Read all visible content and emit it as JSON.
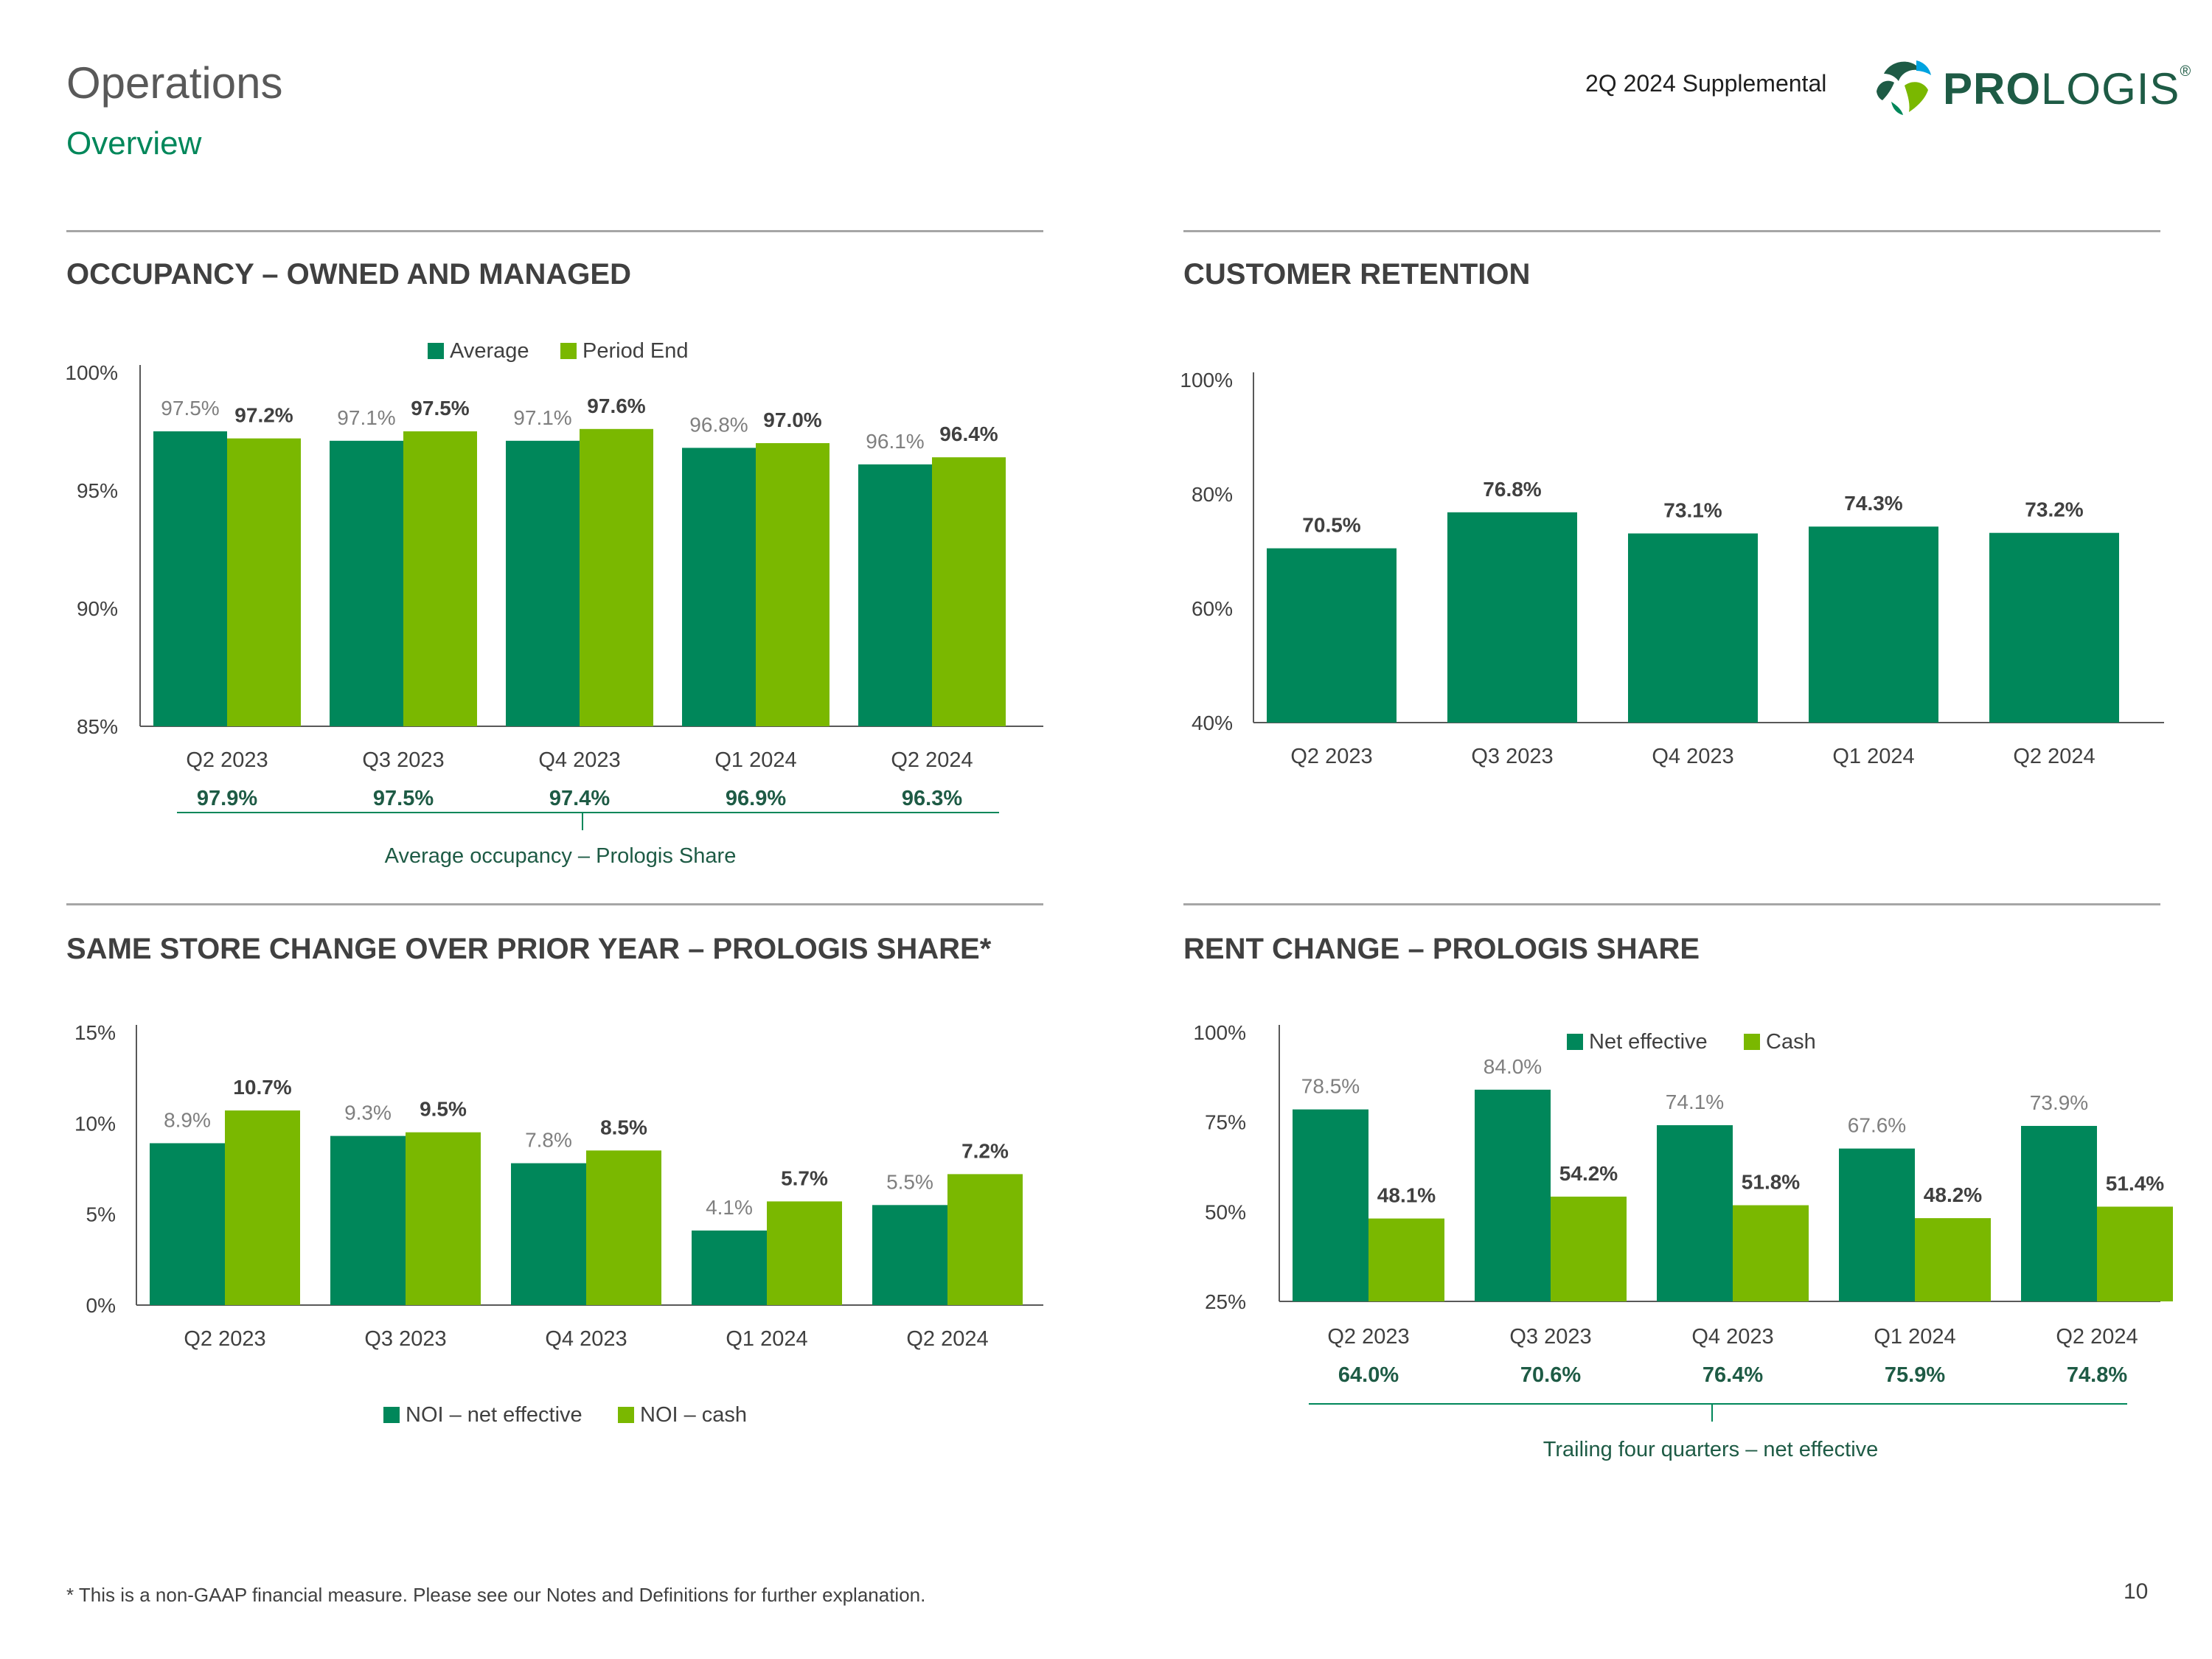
{
  "header": {
    "title": "Operations",
    "subtitle": "Overview",
    "supplemental": "2Q 2024 Supplemental",
    "logo_text_bold": "PRO",
    "logo_text_light": "LOGIS",
    "logo_mark": "®"
  },
  "colors": {
    "dark_green": "#00875A",
    "light_green": "#7AB800",
    "gray_label": "#7f7f7f",
    "dark_label": "#404040",
    "share_green": "#1E5B45"
  },
  "footer": {
    "footnote": "* This is a non-GAAP financial measure. Please see our Notes and Definitions for further explanation.",
    "page_number": "10"
  },
  "chart_data": [
    {
      "id": "occupancy",
      "type": "bar",
      "title": "OCCUPANCY – OWNED AND MANAGED",
      "categories": [
        "Q2 2023",
        "Q3 2023",
        "Q4 2023",
        "Q1 2024",
        "Q2 2024"
      ],
      "series": [
        {
          "name": "Average",
          "values": [
            97.5,
            97.1,
            97.1,
            96.8,
            96.1
          ],
          "labels": [
            "97.5%",
            "97.1%",
            "97.1%",
            "96.8%",
            "96.1%"
          ]
        },
        {
          "name": "Period End",
          "values": [
            97.2,
            97.5,
            97.6,
            97.0,
            96.4
          ],
          "labels": [
            "97.2%",
            "97.5%",
            "97.6%",
            "97.0%",
            "96.4%"
          ]
        }
      ],
      "yticks": [
        "85%",
        "90%",
        "95%",
        "100%"
      ],
      "ylim": [
        85,
        100
      ],
      "legend": "top",
      "footer_values": [
        "97.9%",
        "97.5%",
        "97.4%",
        "96.9%",
        "96.3%"
      ],
      "footer_label": "Average occupancy – Prologis Share"
    },
    {
      "id": "retention",
      "type": "bar",
      "title": "CUSTOMER RETENTION",
      "categories": [
        "Q2 2023",
        "Q3 2023",
        "Q4 2023",
        "Q1 2024",
        "Q2 2024"
      ],
      "series": [
        {
          "name": "Customer retention",
          "values": [
            70.5,
            76.8,
            73.1,
            74.3,
            73.2
          ],
          "labels": [
            "70.5%",
            "76.8%",
            "73.1%",
            "74.3%",
            "73.2%"
          ]
        }
      ],
      "yticks": [
        "40%",
        "60%",
        "80%",
        "100%"
      ],
      "ylim": [
        40,
        100
      ]
    },
    {
      "id": "samestore",
      "type": "bar",
      "title": "SAME STORE CHANGE OVER PRIOR YEAR – PROLOGIS SHARE*",
      "categories": [
        "Q2 2023",
        "Q3 2023",
        "Q4 2023",
        "Q1 2024",
        "Q2 2024"
      ],
      "series": [
        {
          "name": "NOI – net effective",
          "values": [
            8.9,
            9.3,
            7.8,
            4.1,
            5.5
          ],
          "labels": [
            "8.9%",
            "9.3%",
            "7.8%",
            "4.1%",
            "5.5%"
          ]
        },
        {
          "name": "NOI – cash",
          "values": [
            10.7,
            9.5,
            8.5,
            5.7,
            7.2
          ],
          "labels": [
            "10.7%",
            "9.5%",
            "8.5%",
            "5.7%",
            "7.2%"
          ]
        }
      ],
      "yticks": [
        "0%",
        "5%",
        "10%",
        "15%"
      ],
      "ylim": [
        0,
        15
      ],
      "legend": "bottom"
    },
    {
      "id": "rentchange",
      "type": "bar",
      "title": "RENT CHANGE – PROLOGIS SHARE",
      "categories": [
        "Q2 2023",
        "Q3 2023",
        "Q4 2023",
        "Q1 2024",
        "Q2 2024"
      ],
      "series": [
        {
          "name": "Net effective",
          "values": [
            78.5,
            84.0,
            74.1,
            67.6,
            73.9
          ],
          "labels": [
            "78.5%",
            "84.0%",
            "74.1%",
            "67.6%",
            "73.9%"
          ]
        },
        {
          "name": "Cash",
          "values": [
            48.1,
            54.2,
            51.8,
            48.2,
            51.4
          ],
          "labels": [
            "48.1%",
            "54.2%",
            "51.8%",
            "48.2%",
            "51.4%"
          ]
        }
      ],
      "yticks": [
        "25%",
        "50%",
        "75%",
        "100%"
      ],
      "ylim": [
        25,
        100
      ],
      "legend": "top",
      "footer_values": [
        "64.0%",
        "70.6%",
        "76.4%",
        "75.9%",
        "74.8%"
      ],
      "footer_label": "Trailing four quarters – net effective"
    }
  ]
}
